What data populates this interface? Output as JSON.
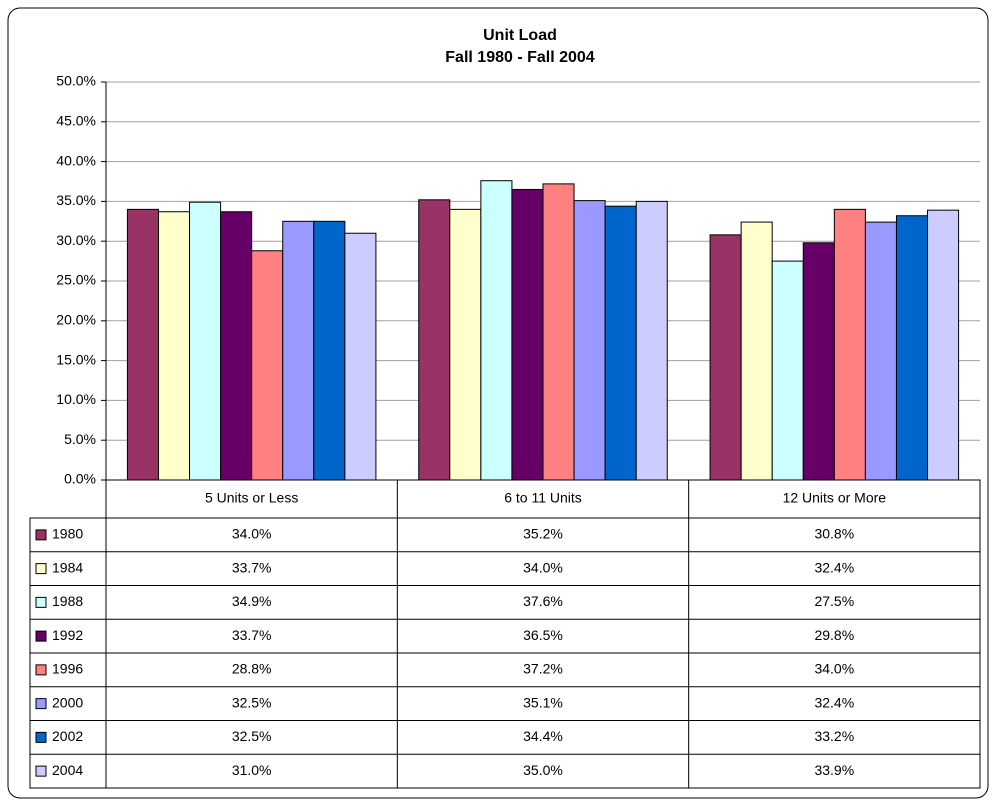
{
  "chart_data": {
    "type": "bar",
    "title": "Unit Load",
    "subtitle": "Fall 1980 - Fall 2004",
    "categories": [
      "5 Units or Less",
      "6 to 11 Units",
      "12 Units or More"
    ],
    "series": [
      {
        "name": "1980",
        "color": "#993366",
        "values": [
          34.0,
          35.2,
          30.8
        ],
        "value_labels": [
          "34.0%",
          "35.2%",
          "30.8%"
        ]
      },
      {
        "name": "1984",
        "color": "#ffffcc",
        "values": [
          33.7,
          34.0,
          32.4
        ],
        "value_labels": [
          "33.7%",
          "34.0%",
          "32.4%"
        ]
      },
      {
        "name": "1988",
        "color": "#ccffff",
        "values": [
          34.9,
          37.6,
          27.5
        ],
        "value_labels": [
          "34.9%",
          "37.6%",
          "27.5%"
        ]
      },
      {
        "name": "1992",
        "color": "#660066",
        "values": [
          33.7,
          36.5,
          29.8
        ],
        "value_labels": [
          "33.7%",
          "36.5%",
          "29.8%"
        ]
      },
      {
        "name": "1996",
        "color": "#ff8080",
        "values": [
          28.8,
          37.2,
          34.0
        ],
        "value_labels": [
          "28.8%",
          "37.2%",
          "34.0%"
        ]
      },
      {
        "name": "2000",
        "color": "#9999ff",
        "values": [
          32.5,
          35.1,
          32.4
        ],
        "value_labels": [
          "32.5%",
          "35.1%",
          "32.4%"
        ]
      },
      {
        "name": "2002",
        "color": "#0066cc",
        "values": [
          32.5,
          34.4,
          33.2
        ],
        "value_labels": [
          "32.5%",
          "34.4%",
          "33.2%"
        ]
      },
      {
        "name": "2004",
        "color": "#ccccff",
        "values": [
          31.0,
          35.0,
          33.9
        ],
        "value_labels": [
          "31.0%",
          "35.0%",
          "33.9%"
        ]
      }
    ],
    "ylim": [
      0,
      50
    ],
    "yticks": [
      {
        "value": 0,
        "label": "0.0%"
      },
      {
        "value": 5,
        "label": "5.0%"
      },
      {
        "value": 10,
        "label": "10.0%"
      },
      {
        "value": 15,
        "label": "15.0%"
      },
      {
        "value": 20,
        "label": "20.0%"
      },
      {
        "value": 25,
        "label": "25.0%"
      },
      {
        "value": 30,
        "label": "30.0%"
      },
      {
        "value": 35,
        "label": "35.0%"
      },
      {
        "value": 40,
        "label": "40.0%"
      },
      {
        "value": 45,
        "label": "45.0%"
      },
      {
        "value": 50,
        "label": "50.0%"
      }
    ],
    "grid": true
  }
}
